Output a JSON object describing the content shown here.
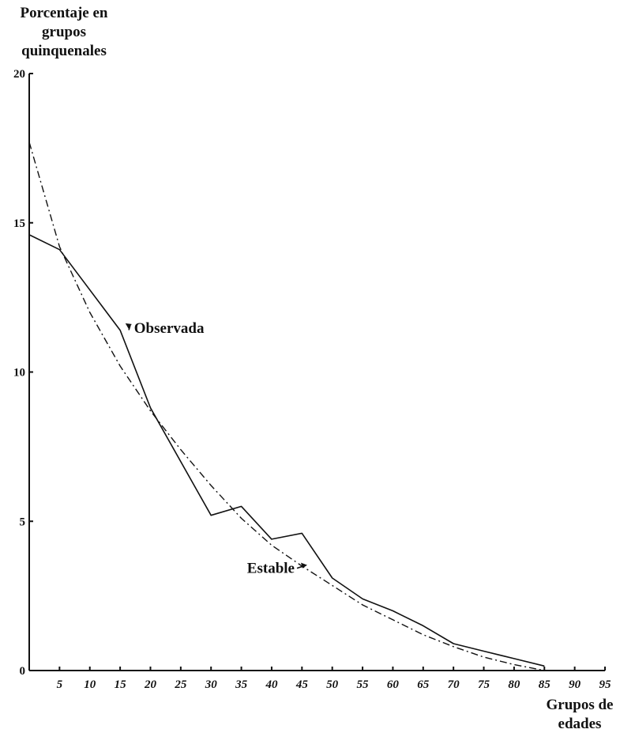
{
  "chart_data": {
    "type": "line",
    "ylabel": [
      "Porcentaje en",
      "grupos",
      "quinquenales"
    ],
    "xlabel": [
      "Grupos de",
      "edades"
    ],
    "xlim": [
      0,
      95
    ],
    "ylim": [
      0,
      20
    ],
    "x_ticks": [
      "5",
      "10",
      "15",
      "20",
      "25",
      "30",
      "35",
      "40",
      "45",
      "50",
      "55",
      "60",
      "65",
      "70",
      "75",
      "80",
      "85",
      "90",
      "95"
    ],
    "y_ticks": [
      "0",
      "5",
      "10",
      "15",
      "20"
    ],
    "grid": false,
    "series": [
      {
        "name": "Observada",
        "style": "solid",
        "x": [
          0,
          5,
          15,
          20,
          30,
          35,
          40,
          45,
          50,
          55,
          60,
          65,
          70,
          75,
          80,
          85
        ],
        "y": [
          14.6,
          14.1,
          11.4,
          8.8,
          5.2,
          5.5,
          4.4,
          4.6,
          3.1,
          2.4,
          2.0,
          1.5,
          0.9,
          0.65,
          0.4,
          0.15
        ]
      },
      {
        "name": "Estable",
        "style": "dash-dot",
        "x": [
          0,
          5,
          10,
          15,
          20,
          25,
          30,
          35,
          40,
          45,
          50,
          55,
          60,
          65,
          70,
          75,
          80,
          85
        ],
        "y": [
          17.7,
          14.2,
          12.0,
          10.2,
          8.7,
          7.4,
          6.2,
          5.1,
          4.2,
          3.5,
          2.85,
          2.2,
          1.7,
          1.2,
          0.8,
          0.45,
          0.2,
          0.0
        ]
      }
    ],
    "annotations": [
      {
        "text": "Observada",
        "x": 16,
        "y": 11.5
      },
      {
        "text": "Estable",
        "x": 46,
        "y": 3.4
      }
    ]
  }
}
